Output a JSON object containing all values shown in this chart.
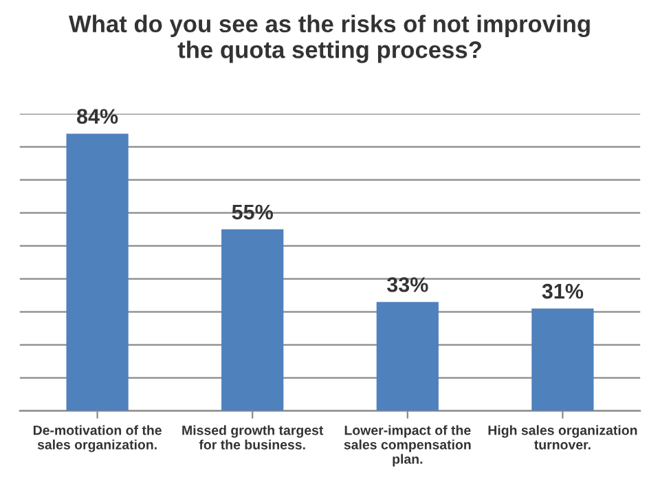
{
  "chart_data": {
    "type": "bar",
    "title": "What do you see as the risks of not improving\nthe quota setting process?",
    "categories": [
      "De-motivation of the\nsales organization.",
      "Missed growth targest\nfor the business.",
      "Lower-impact of the\nsales compensation\nplan.",
      "High sales organization\nturnover."
    ],
    "values": [
      84,
      55,
      33,
      31
    ],
    "color": "#4f81bd",
    "value_labels": [
      "84%",
      "55%",
      "33%",
      "31%"
    ],
    "ylim": [
      0,
      90
    ],
    "yticks": [
      {
        "value": 0,
        "label": null
      },
      {
        "value": 10,
        "label": null
      },
      {
        "value": 20,
        "label": null
      },
      {
        "value": 30,
        "label": null
      },
      {
        "value": 40,
        "label": null
      },
      {
        "value": 50,
        "label": null
      },
      {
        "value": 60,
        "label": null
      },
      {
        "value": 70,
        "label": null
      },
      {
        "value": 80,
        "label": null
      },
      {
        "value": 90,
        "label": null
      }
    ],
    "tick_labels": "x",
    "grid": "y",
    "legend": false
  }
}
